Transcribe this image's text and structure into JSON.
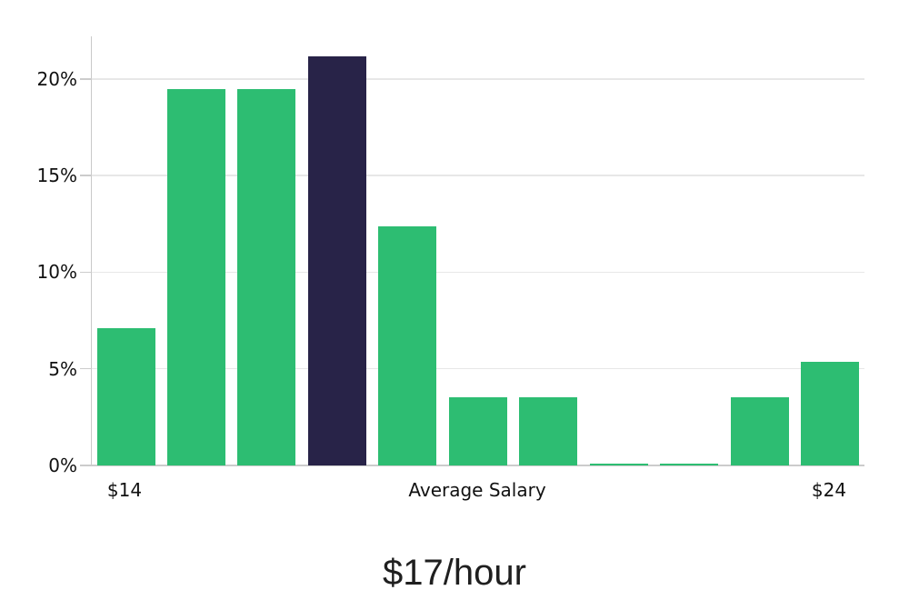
{
  "chart_data": {
    "type": "bar",
    "title": "$17/hour",
    "xlabel": "Average Salary",
    "x_tick_labels": [
      {
        "bar_index": 0,
        "label": "$14"
      },
      {
        "bar_index": 10,
        "label": "$24"
      }
    ],
    "y_ticks": [
      {
        "label": "0%",
        "value": 0
      },
      {
        "label": "5%",
        "value": 5
      },
      {
        "label": "10%",
        "value": 10
      },
      {
        "label": "15%",
        "value": 15
      },
      {
        "label": "20%",
        "value": 20
      }
    ],
    "ylim": [
      0,
      22.2
    ],
    "values": [
      7.1,
      19.45,
      19.45,
      21.15,
      12.35,
      3.55,
      3.55,
      0.1,
      0.1,
      3.55,
      5.35
    ],
    "highlight_index": 3,
    "grid": "horizontal",
    "legend": "none",
    "colors": {
      "bar": "#2dbd72",
      "highlight_bar": "#282348",
      "gridline": "#e7e7e7",
      "axis": "#cccccc",
      "tick_text": "#111111",
      "title_text": "#1f1f1f"
    }
  }
}
